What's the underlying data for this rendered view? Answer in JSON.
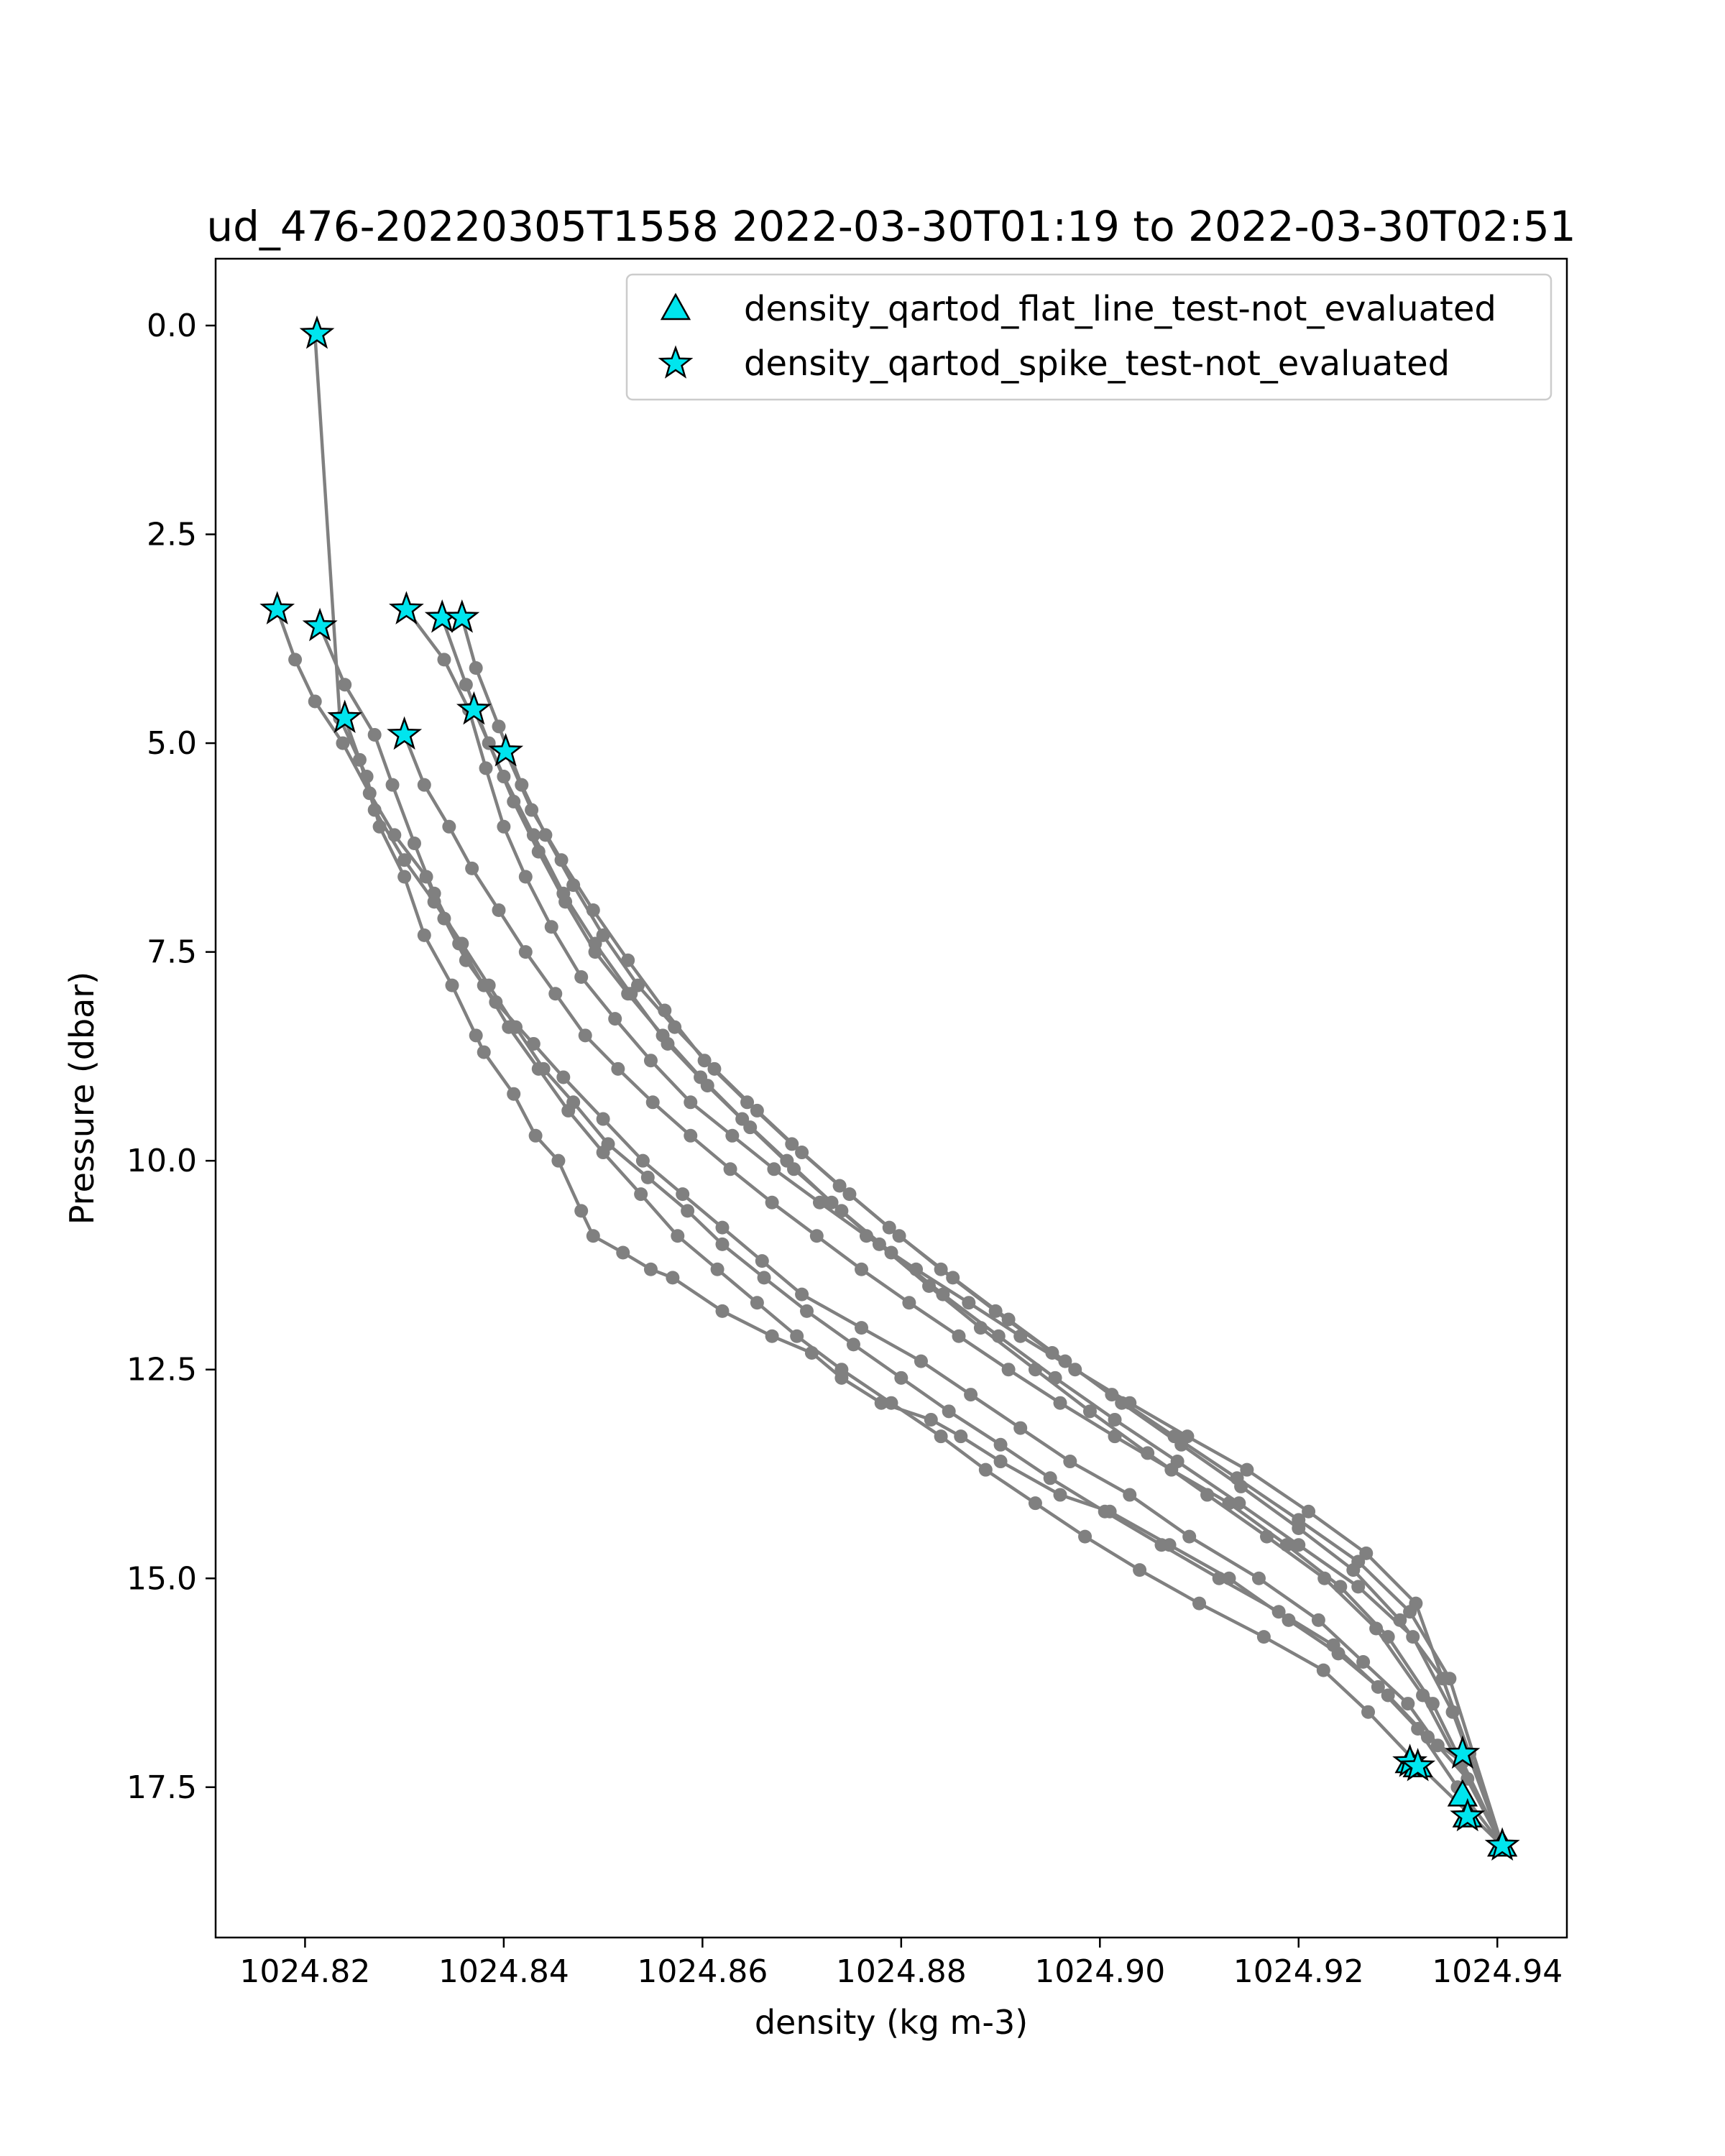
{
  "chart_data": {
    "type": "scatter",
    "title": "ud_476-20220305T1558 2022-03-30T01:19 to 2022-03-30T02:51",
    "xlabel": "density (kg m-3)",
    "ylabel": "Pressure (dbar)",
    "xlim": [
      1024.811,
      1024.947
    ],
    "ylim": [
      19.3,
      -0.8
    ],
    "y_inverted": true,
    "x_ticks": [
      1024.82,
      1024.84,
      1024.86,
      1024.88,
      1024.9,
      1024.92,
      1024.94
    ],
    "x_tick_labels": [
      "1024.82",
      "1024.84",
      "1024.86",
      "1024.88",
      "1024.90",
      "1024.92",
      "1024.94"
    ],
    "y_ticks": [
      0.0,
      2.5,
      5.0,
      7.5,
      10.0,
      12.5,
      15.0,
      17.5
    ],
    "y_tick_labels": [
      "0.0",
      "2.5",
      "5.0",
      "7.5",
      "10.0",
      "12.5",
      "15.0",
      "17.5"
    ],
    "grid": false,
    "legend_placement": "top-right",
    "line_color": "#808080",
    "marker_color": "#00e5ee",
    "profiles": [
      {
        "x": [
          1024.821,
          1024.8235,
          1024.8262,
          1024.8275,
          1024.83,
          1024.832,
          1024.8348,
          1024.8372,
          1024.838,
          1024.841,
          1024.8432,
          1024.8455,
          1024.8478,
          1024.849,
          1024.852,
          1024.8548,
          1024.857,
          1024.862,
          1024.867,
          1024.871,
          1024.874,
          1024.878,
          1024.883,
          1024.886,
          1024.89,
          1024.896,
          1024.901,
          1024.907,
          1024.913,
          1024.919,
          1024.924,
          1024.929,
          1024.933,
          1024.9365,
          1024.9405
        ],
        "y": [
          0.1,
          4.7,
          5.4,
          6.0,
          6.6,
          7.3,
          7.9,
          8.5,
          8.7,
          9.2,
          9.7,
          10.0,
          10.6,
          10.9,
          11.1,
          11.3,
          11.4,
          11.8,
          12.1,
          12.3,
          12.6,
          12.9,
          13.1,
          13.3,
          13.6,
          14.0,
          14.2,
          14.6,
          15.0,
          15.5,
          15.9,
          16.4,
          16.9,
          17.2,
          18.2
        ]
      },
      {
        "x": [
          1024.8172,
          1024.819,
          1024.821,
          1024.8238,
          1024.8265,
          1024.829,
          1024.8322,
          1024.834,
          1024.8362,
          1024.8392,
          1024.843,
          1024.846,
          1024.85,
          1024.854,
          1024.858,
          1024.862,
          1024.866,
          1024.87,
          1024.876,
          1024.882,
          1024.887,
          1024.892,
          1024.897,
          1024.903,
          1024.909,
          1024.916,
          1024.922,
          1024.9265,
          1024.931,
          1024.934,
          1024.937,
          1024.9405
        ],
        "y": [
          3.4,
          4.0,
          4.5,
          5.0,
          5.6,
          6.1,
          6.6,
          7.1,
          7.6,
          8.1,
          8.6,
          9.0,
          9.5,
          10.0,
          10.4,
          10.8,
          11.2,
          11.6,
          12.0,
          12.4,
          12.8,
          13.2,
          13.6,
          14.0,
          14.5,
          15.0,
          15.5,
          16.0,
          16.5,
          17.0,
          17.4,
          18.2
        ]
      },
      {
        "x": [
          1024.8215,
          1024.824,
          1024.827,
          1024.8288,
          1024.831,
          1024.833,
          1024.8355,
          1024.838,
          1024.8405,
          1024.8435,
          1024.8465,
          1024.85,
          1024.8538,
          1024.8575,
          1024.8615,
          1024.8655,
          1024.8695,
          1024.874,
          1024.879,
          1024.884,
          1024.8885,
          1024.8935,
          1024.8985,
          1024.904,
          1024.91,
          1024.9165,
          1024.9225,
          1024.927,
          1024.9318,
          1024.9405
        ],
        "y": [
          3.6,
          4.3,
          4.9,
          5.5,
          6.2,
          6.8,
          7.4,
          7.9,
          8.4,
          8.9,
          9.4,
          9.9,
          10.4,
          10.9,
          11.3,
          11.7,
          12.1,
          12.5,
          12.9,
          13.3,
          13.7,
          14.1,
          14.5,
          14.9,
          15.3,
          15.7,
          16.1,
          16.6,
          17.2,
          18.2
        ]
      },
      {
        "x": [
          1024.824,
          1024.8255,
          1024.827,
          1024.83,
          1024.833,
          1024.8358,
          1024.8385,
          1024.8412,
          1024.844,
          1024.847,
          1024.8505,
          1024.8545,
          1024.8585,
          1024.862,
          1024.8662,
          1024.8705,
          1024.8752,
          1024.88,
          1024.8848,
          1024.89,
          1024.895,
          1024.9005,
          1024.9062,
          1024.912,
          1024.918,
          1024.9235,
          1024.928,
          1024.932,
          1024.936,
          1024.9405
        ],
        "y": [
          4.7,
          5.2,
          5.8,
          6.4,
          6.9,
          7.4,
          7.9,
          8.4,
          8.9,
          9.3,
          9.8,
          10.2,
          10.6,
          11.0,
          11.4,
          11.8,
          12.2,
          12.6,
          13.0,
          13.4,
          13.8,
          14.2,
          14.6,
          15.0,
          15.4,
          15.8,
          16.3,
          16.8,
          17.5,
          18.2
        ]
      },
      {
        "x": [
          1024.83,
          1024.832,
          1024.8345,
          1024.8368,
          1024.8395,
          1024.8422,
          1024.8452,
          1024.8482,
          1024.8515,
          1024.855,
          1024.8588,
          1024.8628,
          1024.867,
          1024.8715,
          1024.876,
          1024.8808,
          1024.8858,
          1024.8908,
          1024.896,
          1024.9015,
          1024.9072,
          1024.913,
          1024.9188,
          1024.9242,
          1024.929,
          1024.9335,
          1024.9405
        ],
        "y": [
          4.9,
          5.5,
          6.0,
          6.5,
          7.0,
          7.5,
          8.0,
          8.5,
          8.9,
          9.3,
          9.7,
          10.1,
          10.5,
          10.9,
          11.3,
          11.7,
          12.1,
          12.5,
          12.9,
          13.3,
          13.7,
          14.1,
          14.6,
          15.1,
          15.7,
          16.5,
          18.2
        ]
      },
      {
        "x": [
          1024.8302,
          1024.834,
          1024.8365,
          1024.8382,
          1024.84,
          1024.8422,
          1024.8448,
          1024.8478,
          1024.8512,
          1024.8548,
          1024.8588,
          1024.863,
          1024.8672,
          1024.8718,
          1024.8765,
          1024.8815,
          1024.8868,
          1024.892,
          1024.8975,
          1024.903,
          1024.9088,
          1024.9148,
          1024.921,
          1024.9268,
          1024.9318,
          1024.9405
        ],
        "y": [
          3.4,
          4.0,
          4.6,
          5.3,
          6.0,
          6.6,
          7.2,
          7.8,
          8.3,
          8.8,
          9.3,
          9.7,
          10.1,
          10.5,
          10.9,
          11.3,
          11.7,
          12.1,
          12.5,
          12.9,
          13.3,
          13.7,
          14.2,
          14.7,
          15.3,
          18.2
        ]
      },
      {
        "x": [
          1024.8338,
          1024.8362,
          1024.8385,
          1024.841,
          1024.8435,
          1024.8462,
          1024.8492,
          1024.8525,
          1024.856,
          1024.8598,
          1024.864,
          1024.8685,
          1024.873,
          1024.8778,
          1024.8828,
          1024.888,
          1024.8935,
          1024.899,
          1024.9048,
          1024.9108,
          1024.9168,
          1024.9226,
          1024.9278,
          1024.9325,
          1024.9405
        ],
        "y": [
          3.5,
          4.3,
          5.0,
          5.7,
          6.3,
          6.9,
          7.5,
          8.0,
          8.5,
          9.0,
          9.5,
          10.0,
          10.5,
          11.0,
          11.5,
          12.0,
          12.5,
          13.0,
          13.5,
          14.0,
          14.5,
          15.0,
          15.6,
          16.4,
          18.2
        ]
      },
      {
        "x": [
          1024.8358,
          1024.8372,
          1024.8395,
          1024.8418,
          1024.8442,
          1024.847,
          1024.85,
          1024.8535,
          1024.8572,
          1024.8612,
          1024.8655,
          1024.87,
          1024.8748,
          1024.8798,
          1024.8852,
          1024.8908,
          1024.8965,
          1024.9022,
          1024.9082,
          1024.9142,
          1024.92,
          1024.9255,
          1024.9302,
          1024.9345,
          1024.9372,
          1024.9405
        ],
        "y": [
          3.5,
          4.1,
          4.8,
          5.5,
          6.1,
          6.7,
          7.3,
          7.9,
          8.4,
          8.9,
          9.4,
          9.9,
          10.4,
          10.9,
          11.4,
          11.9,
          12.4,
          12.9,
          13.4,
          13.9,
          14.4,
          14.9,
          15.5,
          16.2,
          17.1,
          18.2
        ]
      },
      {
        "x": [
          1024.837,
          1024.84,
          1024.843,
          1024.846,
          1024.8492,
          1024.8528,
          1024.8565,
          1024.8605,
          1024.8648,
          1024.8692,
          1024.874,
          1024.879,
          1024.8842,
          1024.8898,
          1024.8955,
          1024.9015,
          1024.9078,
          1024.914,
          1024.92,
          1024.926,
          1024.9315,
          1024.9355,
          1024.9405
        ],
        "y": [
          4.6,
          5.4,
          6.1,
          6.8,
          7.4,
          8.0,
          8.6,
          9.1,
          9.6,
          10.1,
          10.6,
          11.1,
          11.6,
          12.1,
          12.6,
          13.1,
          13.6,
          14.1,
          14.6,
          15.1,
          15.7,
          16.6,
          18.2
        ]
      },
      {
        "x": [
          1024.8402,
          1024.8428,
          1024.8458,
          1024.849,
          1024.8525,
          1024.8562,
          1024.8602,
          1024.8645,
          1024.869,
          1024.8738,
          1024.8788,
          1024.884,
          1024.8895,
          1024.8952,
          1024.9012,
          1024.9075,
          1024.9138,
          1024.92,
          1024.926,
          1024.9312,
          1024.9352,
          1024.9405
        ],
        "y": [
          5.1,
          5.8,
          6.4,
          7.0,
          7.6,
          8.2,
          8.8,
          9.3,
          9.8,
          10.3,
          10.8,
          11.3,
          11.8,
          12.3,
          12.8,
          13.3,
          13.8,
          14.3,
          14.8,
          15.4,
          16.2,
          18.2
        ]
      }
    ],
    "series": [
      {
        "name": "density_qartod_flat_line_test-not_evaluated",
        "marker": "triangle",
        "x": [
          1024.9312,
          1024.932,
          1024.9365,
          1024.937,
          1024.9405
        ],
        "y": [
          17.2,
          17.25,
          17.6,
          17.85,
          18.2
        ]
      },
      {
        "name": "density_qartod_spike_test-not_evaluated",
        "marker": "star",
        "x": [
          1024.8212,
          1024.8172,
          1024.8215,
          1024.824,
          1024.83,
          1024.8302,
          1024.8338,
          1024.8358,
          1024.837,
          1024.8402,
          1024.9312,
          1024.932,
          1024.9365,
          1024.937,
          1024.9405
        ],
        "y": [
          0.1,
          3.4,
          3.6,
          4.7,
          4.9,
          3.4,
          3.5,
          3.5,
          4.6,
          5.1,
          17.2,
          17.25,
          17.1,
          17.85,
          18.2
        ]
      }
    ]
  }
}
